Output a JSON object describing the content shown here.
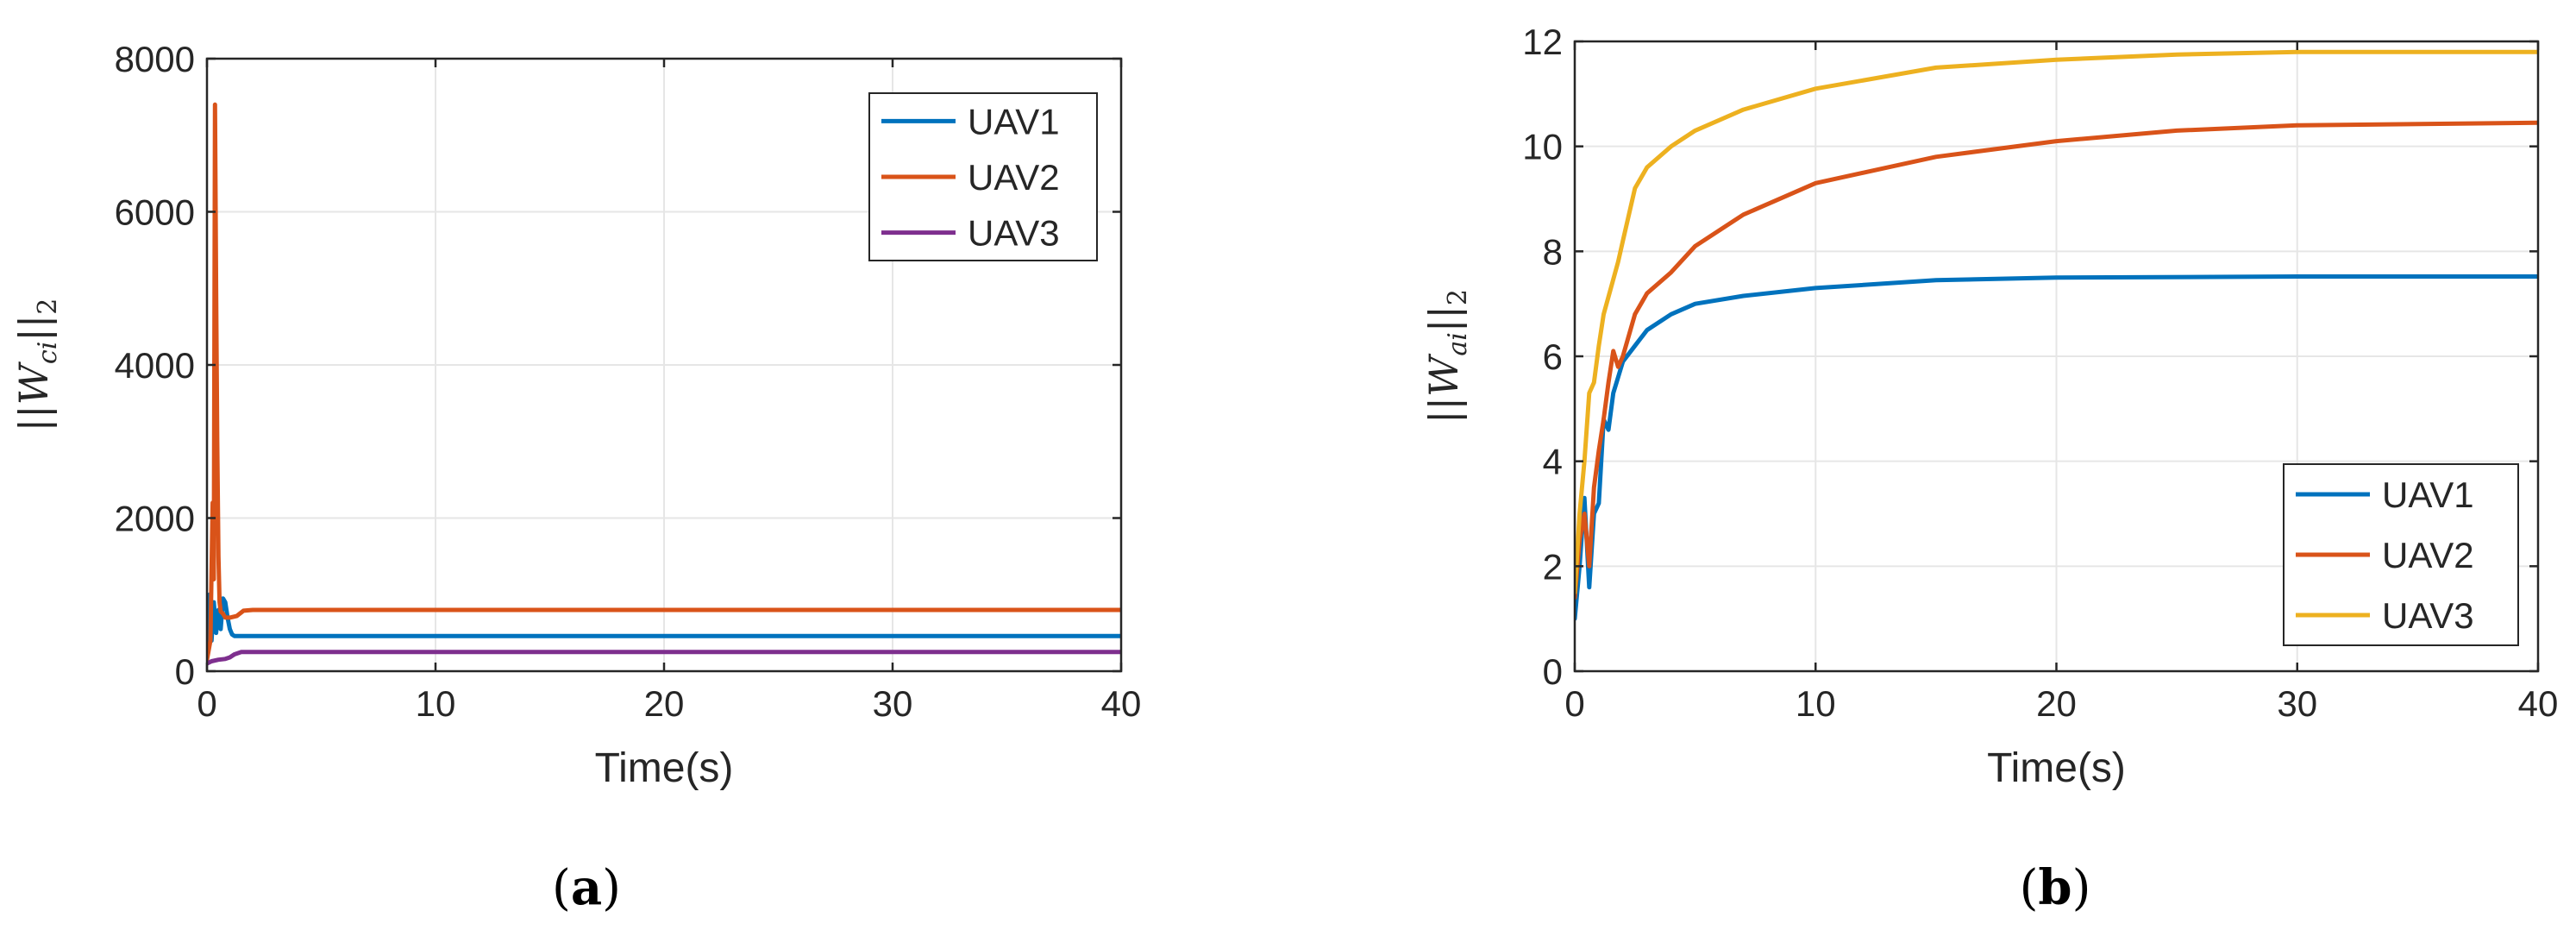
{
  "chart_data": [
    {
      "type": "line",
      "panel_label": "(a)",
      "xlabel": "Time(s)",
      "ylabel": {
        "prefix": "||W",
        "subscript_main": "ci",
        "suffix": "||",
        "subscript_tail": "2"
      },
      "xlim": [
        0,
        40
      ],
      "ylim": [
        0,
        8000
      ],
      "xticks": [
        0,
        10,
        20,
        30,
        40
      ],
      "yticks": [
        0,
        2000,
        4000,
        6000,
        8000
      ],
      "tick_labels_x": [
        "0",
        "10",
        "20",
        "30",
        "40"
      ],
      "tick_labels_y": [
        "0",
        "2000",
        "4000",
        "6000",
        "8000"
      ],
      "grid": true,
      "legend_position": "top-right",
      "series": [
        {
          "name": "UAV1",
          "color": "#0072BD",
          "x": [
            0,
            0.1,
            0.2,
            0.3,
            0.4,
            0.5,
            0.6,
            0.7,
            0.8,
            0.9,
            1.0,
            1.1,
            1.2,
            1.5,
            2,
            5,
            10,
            20,
            30,
            40
          ],
          "y": [
            300,
            1000,
            400,
            900,
            500,
            800,
            550,
            950,
            900,
            700,
            550,
            480,
            460,
            460,
            460,
            460,
            460,
            460,
            460,
            460
          ]
        },
        {
          "name": "UAV2",
          "color": "#D95319",
          "x": [
            0,
            0.15,
            0.25,
            0.3,
            0.35,
            0.4,
            0.45,
            0.5,
            0.55,
            0.6,
            0.7,
            0.8,
            1.0,
            1.3,
            1.6,
            2,
            5,
            10,
            20,
            30,
            40
          ],
          "y": [
            150,
            400,
            2200,
            1200,
            7400,
            5000,
            3000,
            1500,
            900,
            780,
            750,
            700,
            700,
            720,
            790,
            800,
            800,
            800,
            800,
            800,
            800
          ]
        },
        {
          "name": "UAV3",
          "color": "#7E2F8E",
          "x": [
            0,
            0.2,
            0.5,
            0.8,
            1.0,
            1.2,
            1.5,
            2,
            5,
            10,
            20,
            30,
            40
          ],
          "y": [
            100,
            130,
            150,
            160,
            180,
            220,
            250,
            250,
            250,
            250,
            250,
            250,
            250
          ]
        }
      ]
    },
    {
      "type": "line",
      "panel_label": "(b)",
      "xlabel": "Time(s)",
      "ylabel": {
        "prefix": "||W",
        "subscript_main": "ai",
        "suffix": "||",
        "subscript_tail": "2"
      },
      "xlim": [
        0,
        40
      ],
      "ylim": [
        0,
        12
      ],
      "xticks": [
        0,
        10,
        20,
        30,
        40
      ],
      "yticks": [
        0,
        2,
        4,
        6,
        8,
        10,
        12
      ],
      "tick_labels_x": [
        "0",
        "10",
        "20",
        "30",
        "40"
      ],
      "tick_labels_y": [
        "0",
        "2",
        "4",
        "6",
        "8",
        "10",
        "12"
      ],
      "grid": true,
      "legend_position": "bottom-right",
      "series": [
        {
          "name": "UAV1",
          "color": "#0072BD",
          "x": [
            0,
            0.2,
            0.4,
            0.6,
            0.8,
            1.0,
            1.2,
            1.4,
            1.6,
            1.8,
            2.0,
            2.5,
            3,
            4,
            5,
            7,
            10,
            15,
            20,
            30,
            40
          ],
          "y": [
            1.0,
            2.0,
            3.3,
            1.6,
            3.0,
            3.2,
            4.8,
            4.6,
            5.3,
            5.6,
            5.9,
            6.2,
            6.5,
            6.8,
            7.0,
            7.15,
            7.3,
            7.45,
            7.5,
            7.52,
            7.52
          ]
        },
        {
          "name": "UAV2",
          "color": "#D95319",
          "x": [
            0,
            0.2,
            0.4,
            0.6,
            0.8,
            1.0,
            1.2,
            1.4,
            1.6,
            1.8,
            2.0,
            2.5,
            3,
            4,
            5,
            7,
            10,
            15,
            20,
            25,
            30,
            40
          ],
          "y": [
            1.4,
            2.5,
            3.0,
            2.0,
            3.5,
            4.2,
            4.8,
            5.5,
            6.1,
            5.8,
            6.0,
            6.8,
            7.2,
            7.6,
            8.1,
            8.7,
            9.3,
            9.8,
            10.1,
            10.3,
            10.4,
            10.45
          ]
        },
        {
          "name": "UAV3",
          "color": "#EDB120",
          "x": [
            0,
            0.2,
            0.4,
            0.6,
            0.8,
            1.0,
            1.2,
            1.5,
            1.8,
            2.0,
            2.5,
            3,
            4,
            5,
            7,
            10,
            15,
            20,
            25,
            30,
            40
          ],
          "y": [
            1.5,
            3.0,
            4.0,
            5.3,
            5.5,
            6.2,
            6.8,
            7.3,
            7.8,
            8.2,
            9.2,
            9.6,
            10.0,
            10.3,
            10.7,
            11.1,
            11.5,
            11.65,
            11.75,
            11.8,
            11.8
          ]
        }
      ]
    }
  ]
}
